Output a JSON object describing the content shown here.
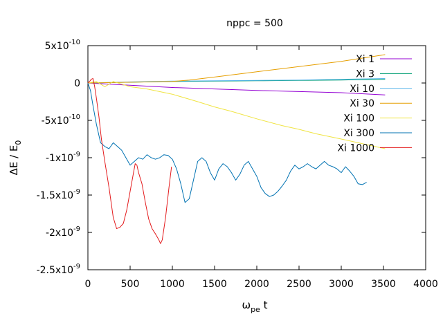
{
  "chart_data": {
    "type": "line",
    "title": "nppc = 500",
    "xlabel": {
      "main": "ω",
      "sub": "pe",
      "tail": " t"
    },
    "ylabel": {
      "main": "ΔE / E",
      "sub": "0"
    },
    "xlim": [
      0,
      4000
    ],
    "ylim": [
      -2.5e-09,
      5e-10
    ],
    "x_ticks": [
      {
        "value": 0,
        "label": "0"
      },
      {
        "value": 500,
        "label": "500"
      },
      {
        "value": 1000,
        "label": "1000"
      },
      {
        "value": 1500,
        "label": "1500"
      },
      {
        "value": 2000,
        "label": "2000"
      },
      {
        "value": 2500,
        "label": "2500"
      },
      {
        "value": 3000,
        "label": "3000"
      },
      {
        "value": 3500,
        "label": "3500"
      },
      {
        "value": 4000,
        "label": "4000"
      }
    ],
    "y_ticks": [
      {
        "value": 5e-10,
        "mant": "5x10",
        "exp": "-10"
      },
      {
        "value": 0,
        "mant": "0",
        "exp": ""
      },
      {
        "value": -5e-10,
        "mant": "-5x10",
        "exp": "-10"
      },
      {
        "value": -1e-09,
        "mant": "-1x10",
        "exp": "-9"
      },
      {
        "value": -1.5e-09,
        "mant": "-1.5x10",
        "exp": "-9"
      },
      {
        "value": -2e-09,
        "mant": "-2x10",
        "exp": "-9"
      },
      {
        "value": -2.5e-09,
        "mant": "-2.5x10",
        "exp": "-9"
      }
    ],
    "grid": false,
    "legend_position": "top-right",
    "series": [
      {
        "name": "Xi 1",
        "color": "#9400d3",
        "x": [
          0,
          500,
          1000,
          1500,
          2000,
          2500,
          3000,
          3520
        ],
        "y": [
          0,
          -3e-11,
          -6e-11,
          -8e-11,
          -1e-10,
          -1.15e-10,
          -1.3e-10,
          -1.6e-10
        ]
      },
      {
        "name": "Xi 3",
        "color": "#009e73",
        "x": [
          0,
          500,
          1000,
          1500,
          2000,
          2500,
          3000,
          3520
        ],
        "y": [
          0,
          1e-11,
          2e-11,
          2.5e-11,
          3e-11,
          3.5e-11,
          4e-11,
          5e-11
        ]
      },
      {
        "name": "Xi 10",
        "color": "#56b4e9",
        "x": [
          0,
          500,
          1000,
          1500,
          2000,
          2500,
          3000,
          3520
        ],
        "y": [
          0,
          1.5e-11,
          2.5e-11,
          3e-11,
          3.5e-11,
          4e-11,
          5e-11,
          6e-11
        ]
      },
      {
        "name": "Xi 30",
        "color": "#e69f00",
        "x": [
          0,
          500,
          1000,
          1200,
          1500,
          2000,
          2500,
          3000,
          3520
        ],
        "y": [
          0,
          1e-11,
          2e-11,
          4e-11,
          8e-11,
          1.5e-10,
          2.2e-10,
          2.9e-10,
          3.8e-10
        ]
      },
      {
        "name": "Xi 100",
        "color": "#f0e442",
        "x": [
          0,
          100,
          200,
          300,
          500,
          700,
          1000,
          1300,
          1500,
          1700,
          2000,
          2300,
          2500,
          2700,
          3000,
          3200,
          3520
        ],
        "y": [
          0,
          2e-11,
          -5e-11,
          2e-11,
          -5e-11,
          -8e-11,
          -1.5e-10,
          -2.5e-10,
          -3.2e-10,
          -3.8e-10,
          -4.8e-10,
          -5.7e-10,
          -6.2e-10,
          -6.8e-10,
          -7.5e-10,
          -8e-10,
          -8.8e-10
        ]
      },
      {
        "name": "Xi 300",
        "color": "#0072b2",
        "x": [
          0,
          30,
          60,
          100,
          150,
          200,
          250,
          300,
          350,
          400,
          450,
          500,
          550,
          600,
          650,
          700,
          750,
          800,
          850,
          900,
          950,
          1000,
          1050,
          1100,
          1150,
          1200,
          1250,
          1300,
          1350,
          1400,
          1450,
          1500,
          1550,
          1600,
          1650,
          1700,
          1750,
          1800,
          1850,
          1900,
          1950,
          2000,
          2050,
          2100,
          2150,
          2200,
          2250,
          2300,
          2350,
          2400,
          2450,
          2500,
          2550,
          2600,
          2650,
          2700,
          2750,
          2800,
          2850,
          2900,
          2950,
          3000,
          3050,
          3100,
          3150,
          3200,
          3250,
          3300
        ],
        "y": [
          0,
          -1e-10,
          -3e-10,
          -5.5e-10,
          -8e-10,
          -8.5e-10,
          -8.8e-10,
          -8e-10,
          -8.5e-10,
          -9e-10,
          -1e-09,
          -1.1e-09,
          -1.05e-09,
          -1e-09,
          -1.02e-09,
          -9.6e-10,
          -1e-09,
          -1.02e-09,
          -1e-09,
          -9.6e-10,
          -9.7e-10,
          -1.02e-09,
          -1.15e-09,
          -1.35e-09,
          -1.6e-09,
          -1.55e-09,
          -1.3e-09,
          -1.05e-09,
          -1e-09,
          -1.05e-09,
          -1.2e-09,
          -1.3e-09,
          -1.15e-09,
          -1.08e-09,
          -1.12e-09,
          -1.2e-09,
          -1.3e-09,
          -1.22e-09,
          -1.1e-09,
          -1.05e-09,
          -1.15e-09,
          -1.25e-09,
          -1.4e-09,
          -1.48e-09,
          -1.52e-09,
          -1.5e-09,
          -1.45e-09,
          -1.38e-09,
          -1.3e-09,
          -1.18e-09,
          -1.1e-09,
          -1.15e-09,
          -1.12e-09,
          -1.08e-09,
          -1.12e-09,
          -1.15e-09,
          -1.1e-09,
          -1.05e-09,
          -1.1e-09,
          -1.12e-09,
          -1.15e-09,
          -1.2e-09,
          -1.12e-09,
          -1.18e-09,
          -1.25e-09,
          -1.35e-09,
          -1.36e-09,
          -1.33e-09
        ]
      },
      {
        "name": "Xi 1000",
        "color": "#e31a1c",
        "x": [
          0,
          20,
          40,
          60,
          80,
          100,
          130,
          160,
          200,
          250,
          300,
          340,
          380,
          420,
          460,
          500,
          540,
          560,
          580,
          600,
          640,
          680,
          720,
          760,
          800,
          840,
          860,
          880,
          920,
          960,
          990
        ],
        "y": [
          0,
          2e-11,
          5e-11,
          6e-11,
          -5e-11,
          -2e-10,
          -4.5e-10,
          -7.5e-10,
          -1.05e-09,
          -1.4e-09,
          -1.8e-09,
          -1.95e-09,
          -1.93e-09,
          -1.88e-09,
          -1.7e-09,
          -1.45e-09,
          -1.2e-09,
          -1.08e-09,
          -1.1e-09,
          -1.2e-09,
          -1.35e-09,
          -1.6e-09,
          -1.82e-09,
          -1.95e-09,
          -2.02e-09,
          -2.1e-09,
          -2.15e-09,
          -2.1e-09,
          -1.8e-09,
          -1.4e-09,
          -1.12e-09
        ]
      }
    ]
  }
}
